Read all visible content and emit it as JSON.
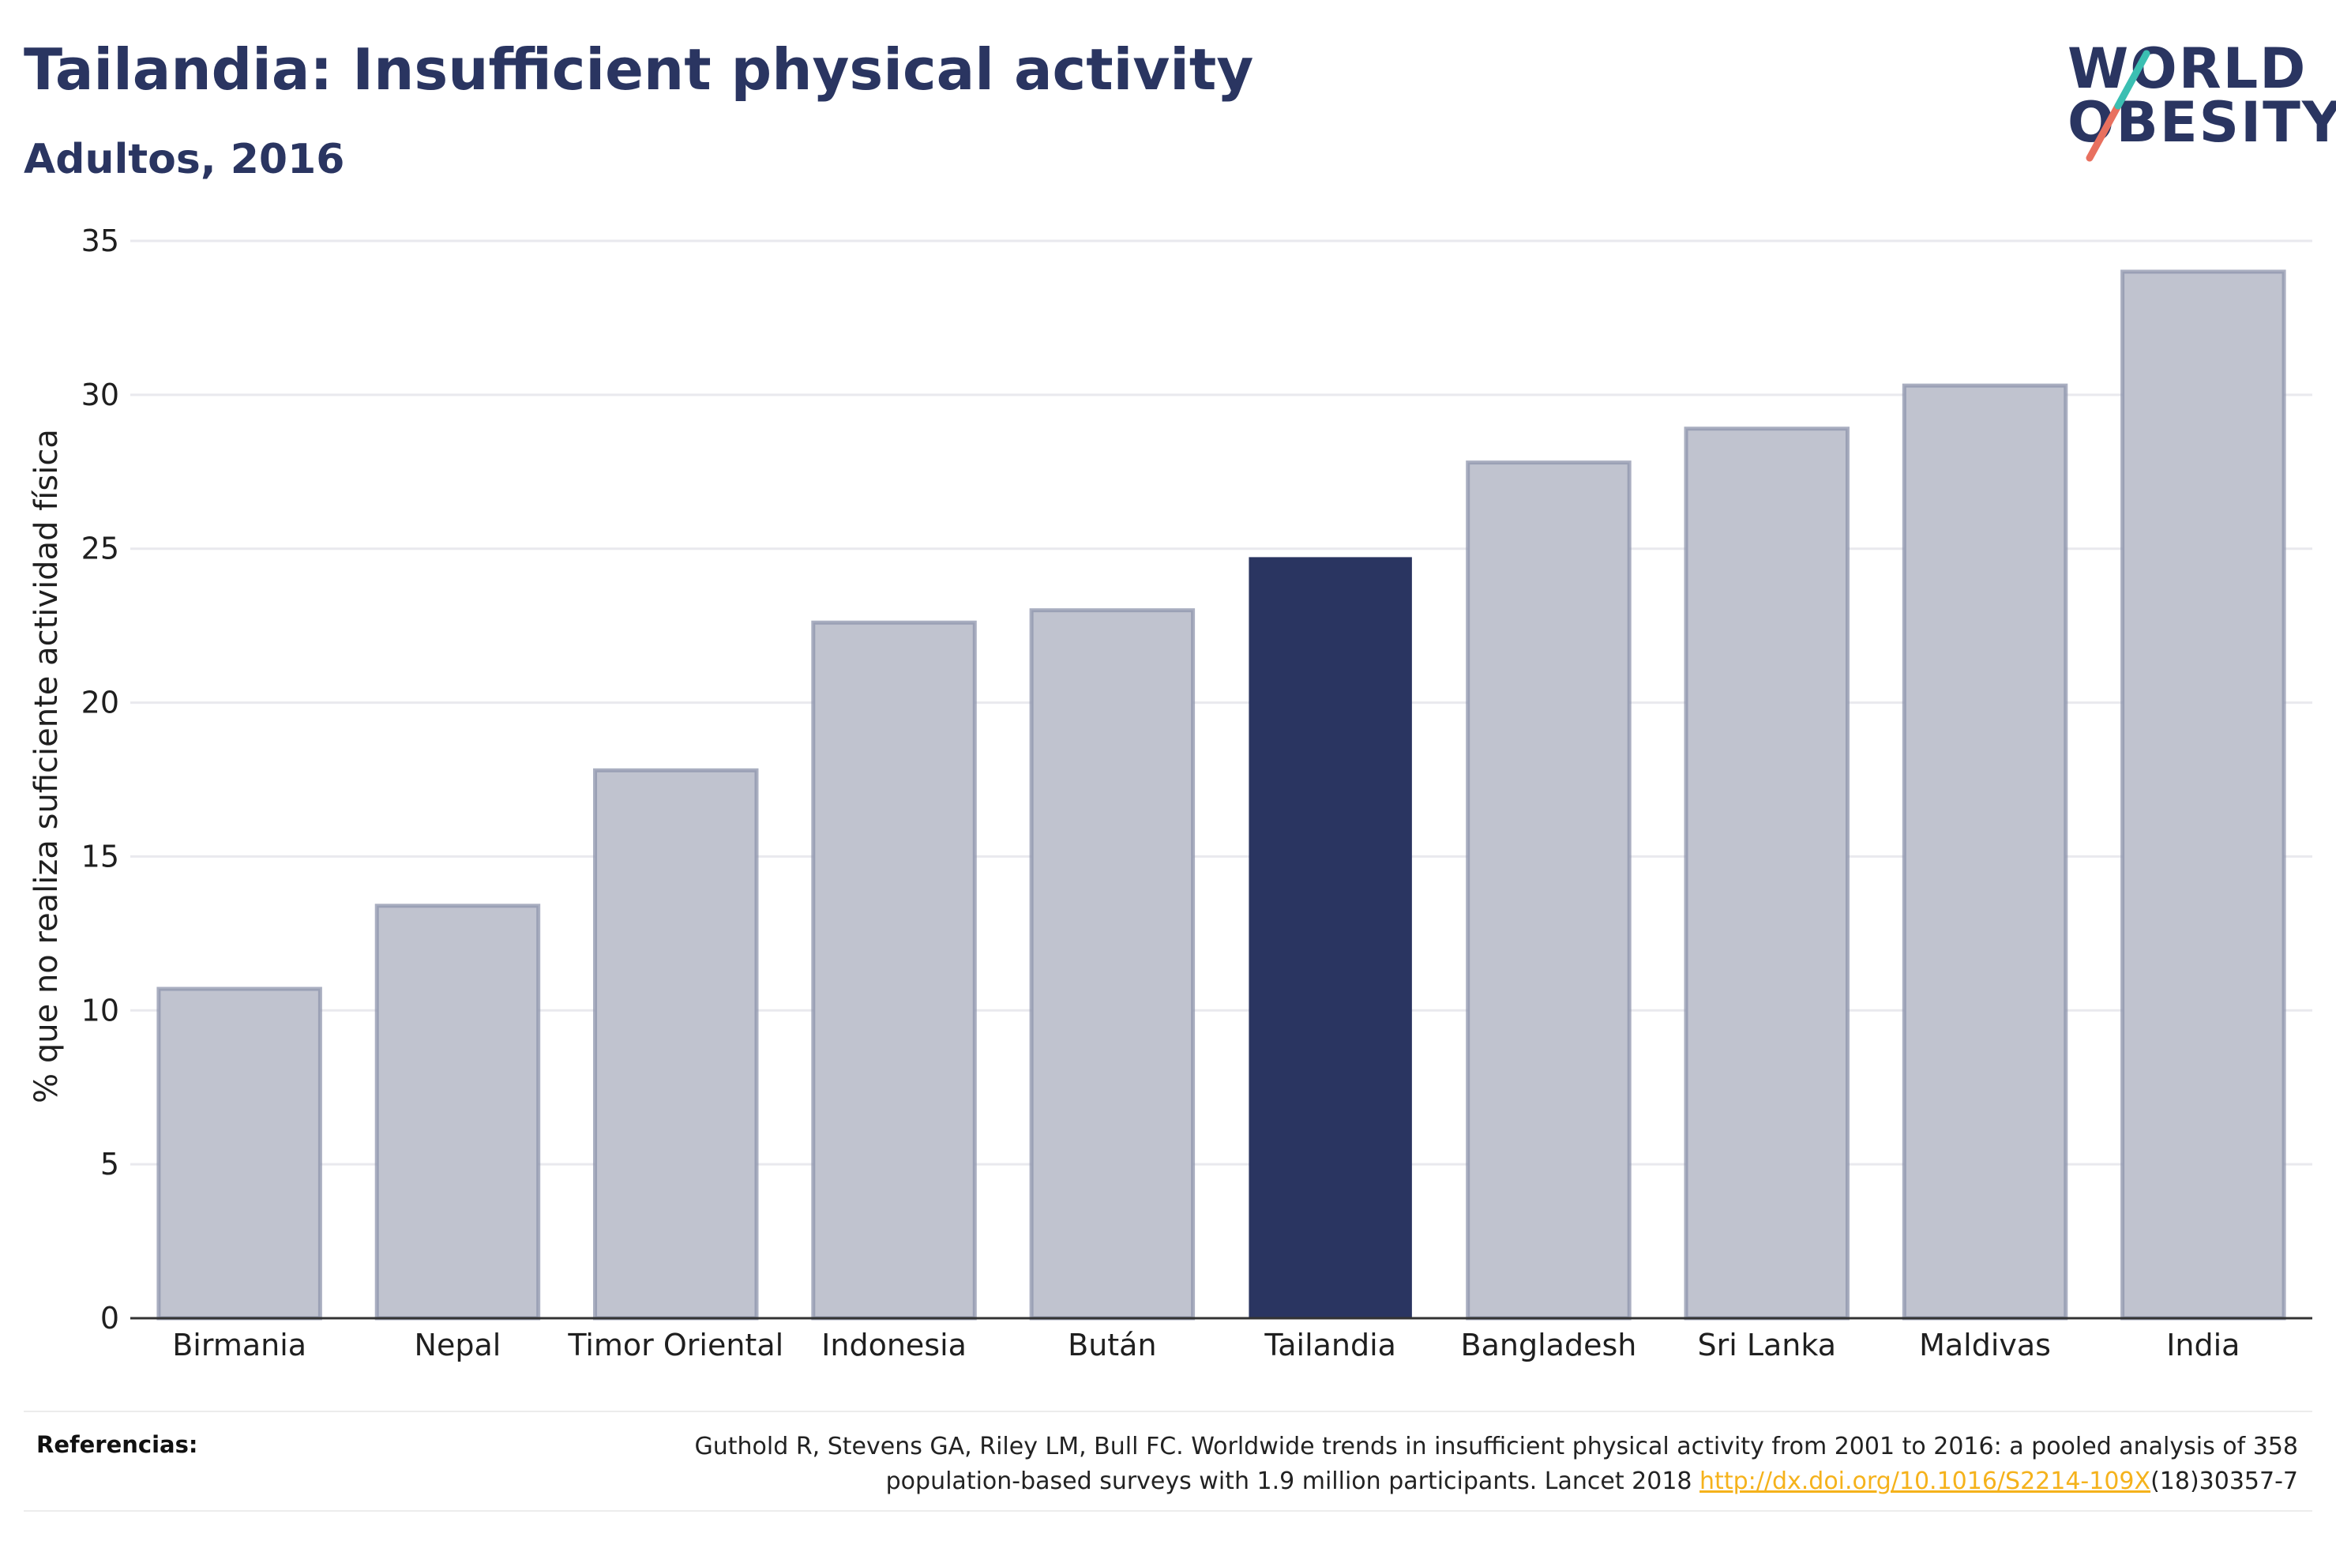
{
  "header": {
    "title": "Tailandia: Insufficient physical activity",
    "subtitle": "Adultos, 2016"
  },
  "logo": {
    "line1": "WORLD",
    "line2": "OBESITY",
    "accent_colors": [
      "#e8705f",
      "#3bbfb2"
    ]
  },
  "chart_data": {
    "type": "bar",
    "categories": [
      "Birmania",
      "Nepal",
      "Timor Oriental",
      "Indonesia",
      "Bután",
      "Tailandia",
      "Bangladesh",
      "Sri Lanka",
      "Maldivas",
      "India"
    ],
    "values": [
      10.7,
      13.4,
      17.8,
      22.6,
      23.0,
      24.7,
      27.8,
      28.9,
      30.3,
      34.0
    ],
    "highlight": "Tailandia",
    "title": "",
    "xlabel": "",
    "ylabel": "% que no realiza suficiente actividad física",
    "ylim": [
      0,
      35
    ],
    "yticks": [
      0,
      5,
      10,
      15,
      20,
      25,
      30,
      35
    ],
    "grid": true,
    "colors": {
      "bar": "#c0c3cf",
      "bar_border": "#8e94ac",
      "highlight": "#2a3561"
    }
  },
  "footer": {
    "references_label": "Referencias:",
    "reference_line1": "Guthold R, Stevens GA, Riley LM, Bull FC. Worldwide trends in insufficient physical activity from 2001 to 2016: a pooled analysis of 358",
    "reference_line2_pre": "population-based surveys with 1.9 million participants. Lancet 2018 ",
    "reference_link": "http://dx.doi.org/10.1016/S2214-109X",
    "reference_line2_post": "(18)30357-7"
  }
}
